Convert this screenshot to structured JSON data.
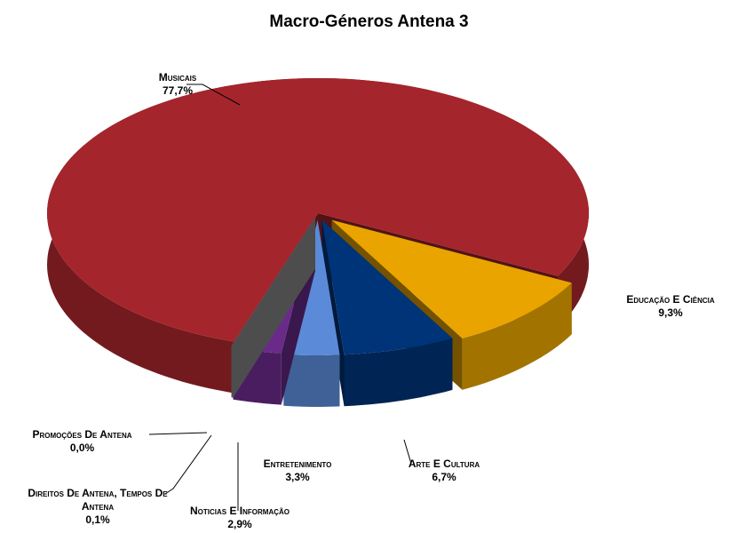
{
  "chart_data": {
    "type": "pie3d",
    "title": "Macro-Géneros Antena 3",
    "categories": [
      "Musicais",
      "Educação E Ciência",
      "Arte E Cultura",
      "Entretenimento",
      "Noticias E Informação",
      "Direitos De Antena, Tempos De Antena",
      "Promoções De Antena"
    ],
    "values": [
      77.7,
      9.3,
      6.7,
      3.3,
      2.9,
      0.1,
      0.0
    ],
    "value_labels": [
      "77,7%",
      "9,3%",
      "6,7%",
      "3,3%",
      "2,9%",
      "0,1%",
      "0,0%"
    ],
    "colors": [
      "#a5252c",
      "#e9a400",
      "#003478",
      "#5b8ad8",
      "#6a2a8a",
      "#8a8aa0",
      "#9a9a9a"
    ]
  }
}
